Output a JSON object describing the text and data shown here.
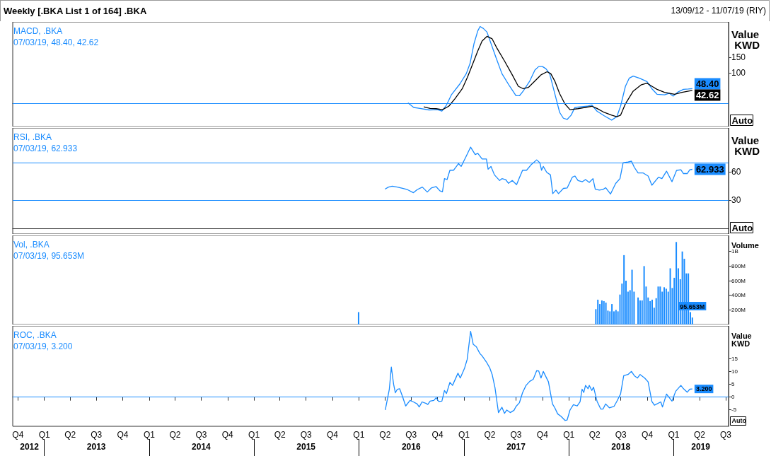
{
  "chart_data": [
    {
      "type": "line",
      "title": "MACD, .BKA",
      "subtitle": "07/03/19, 48.40, 42.62",
      "ylabel": "Value KWD",
      "xlim": [
        "2012-09-13",
        "2019-07-11"
      ],
      "ylim": [
        -75,
        265
      ],
      "yticks": [
        100,
        150
      ],
      "tick_labels": "y",
      "ref_lines": [
        {
          "axis": "y",
          "value": 0,
          "color": "#1a8cff"
        }
      ],
      "annotations": [
        "Weekly [.BKA List 1 of 164] .BKA",
        "13/09/12 - 11/07/19 (RIY)",
        "Auto"
      ],
      "series": [
        {
          "color": "#1a8cff",
          "x": [
            "2016-06-20",
            "2016-07-10",
            "2016-08-01",
            "2016-09-01",
            "2016-10-01",
            "2016-10-16",
            "2016-11-01",
            "2016-11-18",
            "2016-12-18",
            "2017-01-09",
            "2017-01-22",
            "2017-02-05",
            "2017-02-18",
            "2017-02-26",
            "2017-03-09",
            "2017-03-22",
            "2017-04-05",
            "2017-04-22",
            "2017-05-13",
            "2017-06-09",
            "2017-07-01",
            "2017-07-13",
            "2017-07-26",
            "2017-08-18",
            "2017-09-05",
            "2017-09-18",
            "2017-10-01",
            "2017-10-13",
            "2017-10-26",
            "2017-11-13",
            "2017-11-30",
            "2017-12-13",
            "2017-12-26",
            "2018-01-09",
            "2018-01-22",
            "2018-02-09",
            "2018-03-05",
            "2018-03-22",
            "2018-04-09",
            "2018-05-04",
            "2018-05-30",
            "2018-06-17",
            "2018-06-30",
            "2018-07-17",
            "2018-07-30",
            "2018-08-13",
            "2018-09-04",
            "2018-09-30",
            "2018-10-17",
            "2018-11-04",
            "2018-11-30",
            "2018-12-17",
            "2018-12-30",
            "2019-01-17",
            "2019-02-04",
            "2019-02-21",
            "2019-03-07"
          ],
          "values": [
            2,
            -13,
            -16,
            -21,
            -20,
            -25,
            -5,
            28,
            64,
            97,
            130,
            195,
            236,
            250,
            244,
            232,
            195,
            150,
            97,
            56,
            25,
            25,
            40,
            73,
            109,
            120,
            120,
            113,
            97,
            32,
            -29,
            -48,
            -52,
            -38,
            -13,
            -11,
            -9,
            -5,
            -25,
            -40,
            -54,
            -43,
            -9,
            56,
            82,
            89,
            82,
            71,
            48,
            30,
            28,
            33,
            24,
            38,
            46,
            47,
            48.4
          ],
          "value_labels": [
            null,
            null,
            null,
            null,
            null,
            null,
            null,
            null,
            null,
            null,
            null,
            null,
            null,
            null,
            null,
            null,
            null,
            null,
            null,
            null,
            null,
            null,
            null,
            null,
            null,
            null,
            null,
            null,
            null,
            null,
            null,
            null,
            null,
            null,
            null,
            null,
            null,
            null,
            null,
            null,
            null,
            null,
            null,
            null,
            null,
            null,
            null,
            null,
            null,
            null,
            null,
            null,
            null,
            null,
            null,
            null,
            "48.40"
          ]
        },
        {
          "color": "#000000",
          "x": [
            "2016-08-14",
            "2016-09-05",
            "2016-09-26",
            "2016-10-18",
            "2016-11-09",
            "2016-12-01",
            "2016-12-26",
            "2017-01-13",
            "2017-02-01",
            "2017-02-18",
            "2017-03-05",
            "2017-03-22",
            "2017-04-09",
            "2017-04-26",
            "2017-05-22",
            "2017-06-18",
            "2017-07-09",
            "2017-07-26",
            "2017-08-13",
            "2017-09-05",
            "2017-09-26",
            "2017-10-17",
            "2017-10-30",
            "2017-11-13",
            "2017-11-30",
            "2017-12-18",
            "2018-01-05",
            "2018-02-01",
            "2018-02-26",
            "2018-03-22",
            "2018-04-09",
            "2018-05-04",
            "2018-05-30",
            "2018-06-17",
            "2018-06-30",
            "2018-07-17",
            "2018-08-13",
            "2018-09-09",
            "2018-09-30",
            "2018-10-17",
            "2018-11-04",
            "2018-11-30",
            "2019-01-04",
            "2019-01-30",
            "2019-03-07"
          ],
          "values": [
            -11,
            -16,
            -17,
            -20,
            -9,
            16,
            48,
            85,
            130,
            171,
            203,
            218,
            210,
            179,
            138,
            93,
            56,
            48,
            52,
            73,
            93,
            103,
            97,
            73,
            32,
            -1,
            -20,
            -17,
            -13,
            -9,
            -16,
            -29,
            -38,
            -43,
            -38,
            -1,
            40,
            60,
            66,
            56,
            46,
            36,
            30,
            36,
            42.62
          ],
          "value_labels": [
            null,
            null,
            null,
            null,
            null,
            null,
            null,
            null,
            null,
            null,
            null,
            null,
            null,
            null,
            null,
            null,
            null,
            null,
            null,
            null,
            null,
            null,
            null,
            null,
            null,
            null,
            null,
            null,
            null,
            null,
            null,
            null,
            null,
            null,
            null,
            null,
            null,
            null,
            null,
            null,
            null,
            null,
            null,
            null,
            "42.62"
          ]
        }
      ]
    },
    {
      "type": "line",
      "title": "RSI, .BKA",
      "subtitle": "07/03/19, 62.933",
      "ylabel": "Value KWD",
      "xlim": [
        "2012-09-13",
        "2019-07-11"
      ],
      "ylim": [
        -6,
        107
      ],
      "yticks": [
        30,
        60
      ],
      "tick_labels": "y",
      "ref_lines": [
        {
          "axis": "y",
          "value": 70,
          "color": "#1a8cff"
        },
        {
          "axis": "y",
          "value": 30,
          "color": "#1a8cff"
        }
      ],
      "annotations": [
        "Auto"
      ],
      "series": [
        {
          "color": "#1a8cff",
          "x": [
            "2016-04-01",
            "2016-04-13",
            "2016-04-26",
            "2016-05-14",
            "2016-06-01",
            "2016-06-18",
            "2016-07-09",
            "2016-07-22",
            "2016-08-09",
            "2016-08-26",
            "2016-09-09",
            "2016-09-26",
            "2016-10-09",
            "2016-10-18",
            "2016-10-25",
            "2016-11-03",
            "2016-11-13",
            "2016-11-26",
            "2016-12-13",
            "2016-12-22",
            "2017-01-09",
            "2017-01-24",
            "2017-02-09",
            "2017-02-18",
            "2017-03-05",
            "2017-03-20",
            "2017-03-26",
            "2017-04-05",
            "2017-04-17",
            "2017-05-05",
            "2017-05-13",
            "2017-05-26",
            "2017-06-05",
            "2017-06-18",
            "2017-07-03",
            "2017-07-13",
            "2017-07-24",
            "2017-08-07",
            "2017-08-22",
            "2017-09-11",
            "2017-09-22",
            "2017-09-28",
            "2017-10-04",
            "2017-10-16",
            "2017-10-29",
            "2017-11-06",
            "2017-11-17",
            "2017-11-26",
            "2017-12-13",
            "2017-12-26",
            "2018-01-13",
            "2018-01-22",
            "2018-02-02",
            "2018-02-17",
            "2018-02-28",
            "2018-03-13",
            "2018-03-26",
            "2018-04-03",
            "2018-04-17",
            "2018-04-29",
            "2018-05-09",
            "2018-05-26",
            "2018-06-13",
            "2018-06-28",
            "2018-07-09",
            "2018-07-26",
            "2018-08-07",
            "2018-08-17",
            "2018-08-30",
            "2018-09-17",
            "2018-10-04",
            "2018-10-17",
            "2018-11-09",
            "2018-11-21",
            "2018-12-07",
            "2018-12-26",
            "2019-01-11",
            "2019-01-26",
            "2019-02-04",
            "2019-02-17",
            "2019-02-26",
            "2019-03-07"
          ],
          "values": [
            41.8,
            44,
            45,
            44,
            42.6,
            41.3,
            38,
            41.3,
            44,
            38.7,
            43,
            44.5,
            40,
            39,
            53,
            52,
            62,
            62,
            69,
            66,
            77,
            86.6,
            78.7,
            80,
            74,
            74,
            63,
            66,
            57,
            51,
            53,
            52,
            48,
            51,
            46.6,
            54,
            62,
            62,
            67.6,
            73,
            70,
            62,
            66,
            59.7,
            57,
            37,
            40.8,
            37,
            42.6,
            43,
            54.5,
            55.8,
            51,
            49.7,
            52,
            49,
            53,
            41.8,
            40.8,
            41.3,
            43.4,
            36.6,
            47.9,
            53,
            70,
            70.8,
            71.6,
            65,
            59,
            59,
            55.8,
            46,
            54.5,
            53,
            61,
            49.7,
            61.8,
            62.4,
            58.4,
            58.4,
            62.4,
            62.933
          ],
          "value_labels": [
            null,
            null,
            null,
            null,
            null,
            null,
            null,
            null,
            null,
            null,
            null,
            null,
            null,
            null,
            null,
            null,
            null,
            null,
            null,
            null,
            null,
            null,
            null,
            null,
            null,
            null,
            null,
            null,
            null,
            null,
            null,
            null,
            null,
            null,
            null,
            null,
            null,
            null,
            null,
            null,
            null,
            null,
            null,
            null,
            null,
            null,
            null,
            null,
            null,
            null,
            null,
            null,
            null,
            null,
            null,
            null,
            null,
            null,
            null,
            null,
            null,
            null,
            null,
            null,
            null,
            null,
            null,
            null,
            null,
            null,
            null,
            null,
            null,
            null,
            null,
            null,
            null,
            null,
            null,
            null,
            null,
            "62.933"
          ]
        }
      ]
    },
    {
      "type": "bar",
      "title": "Vol, .BKA",
      "subtitle": "07/03/19, 95.653M",
      "ylabel": "Volume",
      "xlim": [
        "2012-09-13",
        "2019-07-11"
      ],
      "ylim": [
        0,
        1220000000
      ],
      "yticks": [
        {
          "value": 200000000,
          "label": "200M"
        },
        {
          "value": 400000000,
          "label": "400M"
        },
        {
          "value": 600000000,
          "label": "600M"
        },
        {
          "value": 800000000,
          "label": "800M"
        },
        {
          "value": 1000000000,
          "label": "1B"
        }
      ],
      "tick_labels": "y",
      "series": [
        {
          "color": "#1a8cff",
          "x": [
            "2015-12-31",
            "2018-04-05",
            "2018-04-12",
            "2018-04-19",
            "2018-04-26",
            "2018-05-03",
            "2018-05-10",
            "2018-05-17",
            "2018-05-24",
            "2018-05-31",
            "2018-06-07",
            "2018-06-14",
            "2018-06-21",
            "2018-06-28",
            "2018-07-05",
            "2018-07-12",
            "2018-07-19",
            "2018-07-26",
            "2018-08-02",
            "2018-08-09",
            "2018-08-16",
            "2018-08-30",
            "2018-09-06",
            "2018-09-13",
            "2018-09-20",
            "2018-09-27",
            "2018-10-04",
            "2018-10-11",
            "2018-10-18",
            "2018-10-25",
            "2018-11-01",
            "2018-11-08",
            "2018-11-15",
            "2018-11-22",
            "2018-11-29",
            "2018-12-06",
            "2018-12-13",
            "2018-12-20",
            "2018-12-27",
            "2019-01-03",
            "2019-01-10",
            "2019-01-17",
            "2019-01-24",
            "2019-01-31",
            "2019-02-07",
            "2019-02-14",
            "2019-02-21",
            "2019-02-28",
            "2019-03-07"
          ],
          "values": [
            170000000,
            210000000,
            340000000,
            280000000,
            330000000,
            320000000,
            300000000,
            190000000,
            180000000,
            280000000,
            180000000,
            200000000,
            180000000,
            410000000,
            560000000,
            950000000,
            600000000,
            450000000,
            470000000,
            750000000,
            450000000,
            370000000,
            330000000,
            330000000,
            800000000,
            520000000,
            370000000,
            320000000,
            340000000,
            230000000,
            360000000,
            520000000,
            520000000,
            450000000,
            510000000,
            490000000,
            450000000,
            770000000,
            500000000,
            640000000,
            1130000000,
            770000000,
            620000000,
            1000000000,
            900000000,
            700000000,
            700000000,
            170000000,
            95653000
          ],
          "value_labels": [
            null,
            null,
            null,
            null,
            null,
            null,
            null,
            null,
            null,
            null,
            null,
            null,
            null,
            null,
            null,
            null,
            null,
            null,
            null,
            null,
            null,
            null,
            null,
            null,
            null,
            null,
            null,
            null,
            null,
            null,
            null,
            null,
            null,
            null,
            null,
            null,
            null,
            null,
            null,
            null,
            null,
            null,
            null,
            null,
            null,
            null,
            null,
            null,
            "95.653M"
          ]
        }
      ]
    },
    {
      "type": "line",
      "title": "ROC, .BKA",
      "subtitle": "07/03/19, 3.200",
      "ylabel": "Value KWD",
      "xlim": [
        "2012-09-13",
        "2019-07-11"
      ],
      "ylim": [
        -11.5,
        28
      ],
      "yticks": [
        -5,
        0,
        5,
        10,
        15
      ],
      "xticks": [
        {
          "value": "2012-10-01",
          "label": "Q4"
        },
        {
          "value": "2013-01-01",
          "label": "Q1"
        },
        {
          "value": "2013-04-01",
          "label": "Q2"
        },
        {
          "value": "2013-07-01",
          "label": "Q3"
        },
        {
          "value": "2013-10-01",
          "label": "Q4"
        },
        {
          "value": "2014-01-01",
          "label": "Q1"
        },
        {
          "value": "2014-04-01",
          "label": "Q2"
        },
        {
          "value": "2014-07-01",
          "label": "Q3"
        },
        {
          "value": "2014-10-01",
          "label": "Q4"
        },
        {
          "value": "2015-01-01",
          "label": "Q1"
        },
        {
          "value": "2015-04-01",
          "label": "Q2"
        },
        {
          "value": "2015-07-01",
          "label": "Q3"
        },
        {
          "value": "2015-10-01",
          "label": "Q4"
        },
        {
          "value": "2016-01-01",
          "label": "Q1"
        },
        {
          "value": "2016-04-01",
          "label": "Q2"
        },
        {
          "value": "2016-07-01",
          "label": "Q3"
        },
        {
          "value": "2016-10-01",
          "label": "Q4"
        },
        {
          "value": "2017-01-01",
          "label": "Q1"
        },
        {
          "value": "2017-04-01",
          "label": "Q2"
        },
        {
          "value": "2017-07-01",
          "label": "Q3"
        },
        {
          "value": "2017-10-01",
          "label": "Q4"
        },
        {
          "value": "2018-01-01",
          "label": "Q1"
        },
        {
          "value": "2018-04-01",
          "label": "Q2"
        },
        {
          "value": "2018-07-01",
          "label": "Q3"
        },
        {
          "value": "2018-10-01",
          "label": "Q4"
        },
        {
          "value": "2019-01-01",
          "label": "Q1"
        },
        {
          "value": "2019-04-01",
          "label": "Q2"
        },
        {
          "value": "2019-07-01",
          "label": "Q3"
        }
      ],
      "x2lim": [
        "2012-09-13",
        "2019-07-11"
      ],
      "x2ticks": [
        {
          "value": "2012-11-10",
          "label": "2012"
        },
        {
          "value": "2013-01-01",
          "label": null
        },
        {
          "value": "2013-07-01",
          "label": "2013"
        },
        {
          "value": "2014-01-01",
          "label": null
        },
        {
          "value": "2014-07-01",
          "label": "2014"
        },
        {
          "value": "2015-01-01",
          "label": null
        },
        {
          "value": "2015-07-01",
          "label": "2015"
        },
        {
          "value": "2016-01-01",
          "label": null
        },
        {
          "value": "2016-07-01",
          "label": "2016"
        },
        {
          "value": "2017-01-01",
          "label": null
        },
        {
          "value": "2017-07-01",
          "label": "2017"
        },
        {
          "value": "2018-01-01",
          "label": null
        },
        {
          "value": "2018-07-01",
          "label": "2018"
        },
        {
          "value": "2019-01-01",
          "label": null
        },
        {
          "value": "2019-04-05",
          "label": "2019"
        }
      ],
      "ref_lines": [
        {
          "axis": "y",
          "value": 0,
          "color": "#1a8cff"
        }
      ],
      "annotations": [
        "Auto"
      ],
      "series": [
        {
          "color": "#1a8cff",
          "x": [
            "2016-04-02",
            "2016-04-16",
            "2016-04-23",
            "2016-05-01",
            "2016-05-07",
            "2016-05-14",
            "2016-05-22",
            "2016-06-01",
            "2016-06-12",
            "2016-06-27",
            "2016-07-09",
            "2016-07-22",
            "2016-07-29",
            "2016-08-08",
            "2016-08-22",
            "2016-08-28",
            "2016-09-05",
            "2016-09-18",
            "2016-09-26",
            "2016-10-05",
            "2016-10-16",
            "2016-10-25",
            "2016-11-01",
            "2016-11-13",
            "2016-11-22",
            "2016-12-11",
            "2016-12-19",
            "2017-01-03",
            "2017-01-12",
            "2017-01-24",
            "2017-02-02",
            "2017-02-13",
            "2017-02-25",
            "2017-03-05",
            "2017-03-20",
            "2017-04-01",
            "2017-04-09",
            "2017-04-19",
            "2017-05-01",
            "2017-05-13",
            "2017-05-22",
            "2017-05-30",
            "2017-06-11",
            "2017-06-24",
            "2017-07-01",
            "2017-07-13",
            "2017-07-24",
            "2017-08-05",
            "2017-08-18",
            "2017-08-30",
            "2017-09-11",
            "2017-09-18",
            "2017-09-26",
            "2017-10-04",
            "2017-10-22",
            "2017-11-05",
            "2017-11-13",
            "2017-11-23",
            "2017-12-05",
            "2017-12-11",
            "2017-12-19",
            "2017-12-26",
            "2018-01-05",
            "2018-01-17",
            "2018-01-30",
            "2018-02-09",
            "2018-02-16",
            "2018-02-22",
            "2018-02-28",
            "2018-03-09",
            "2018-03-13",
            "2018-03-22",
            "2018-03-28",
            "2018-04-09",
            "2018-04-22",
            "2018-04-30",
            "2018-05-09",
            "2018-05-22",
            "2018-06-07",
            "2018-06-16",
            "2018-06-30",
            "2018-07-11",
            "2018-07-26",
            "2018-08-07",
            "2018-08-17",
            "2018-08-28",
            "2018-09-06",
            "2018-09-22",
            "2018-10-04",
            "2018-10-17",
            "2018-10-26",
            "2018-11-17",
            "2018-11-23",
            "2018-12-07",
            "2018-12-26",
            "2019-01-08",
            "2019-01-26",
            "2019-02-04",
            "2019-02-17",
            "2019-02-26",
            "2019-03-07"
          ],
          "values": [
            -5.1,
            3.1,
            11.8,
            5,
            1.7,
            3.1,
            3.3,
            0.2,
            -3.5,
            -1.3,
            -1.9,
            -2.7,
            -3.9,
            -1.9,
            -2.5,
            -2.9,
            -1.6,
            -1.3,
            -0.3,
            -1.7,
            -1.6,
            2.6,
            1.4,
            5.8,
            4.6,
            9.4,
            7.5,
            11.4,
            14.8,
            25.9,
            20.8,
            19.8,
            17.2,
            16.2,
            13.8,
            11.4,
            8.9,
            3.6,
            -6.1,
            -4,
            -6.4,
            -5.1,
            -6.1,
            -5.2,
            -3.7,
            -2.2,
            1.8,
            4.6,
            6.2,
            7,
            10.4,
            10.3,
            7.5,
            10.1,
            6,
            -2.7,
            -4.2,
            -6.6,
            -7.6,
            -8.3,
            -9.2,
            -9,
            -5.1,
            -3,
            -3.5,
            -1.9,
            3.1,
            1.8,
            4.6,
            3.3,
            4.6,
            2.6,
            3.9,
            -1.6,
            -4.7,
            -4.7,
            -2.7,
            -4.2,
            -3.7,
            -1.9,
            1.2,
            8.4,
            8.9,
            10.1,
            8.4,
            7.5,
            8.9,
            7.5,
            6,
            -1.7,
            -3.2,
            -1.9,
            -3.9,
            1.2,
            -1.6,
            2.3,
            4.6,
            3.3,
            1.9,
            3.1,
            3.2
          ],
          "value_labels": [
            null,
            null,
            null,
            null,
            null,
            null,
            null,
            null,
            null,
            null,
            null,
            null,
            null,
            null,
            null,
            null,
            null,
            null,
            null,
            null,
            null,
            null,
            null,
            null,
            null,
            null,
            null,
            null,
            null,
            null,
            null,
            null,
            null,
            null,
            null,
            null,
            null,
            null,
            null,
            null,
            null,
            null,
            null,
            null,
            null,
            null,
            null,
            null,
            null,
            null,
            null,
            null,
            null,
            null,
            null,
            null,
            null,
            null,
            null,
            null,
            null,
            null,
            null,
            null,
            null,
            null,
            null,
            null,
            null,
            null,
            null,
            null,
            null,
            null,
            null,
            null,
            null,
            null,
            null,
            null,
            null,
            null,
            null,
            null,
            null,
            null,
            null,
            null,
            null,
            null,
            null,
            null,
            null,
            null,
            null,
            null,
            null,
            null,
            null,
            null,
            "3.200"
          ]
        }
      ]
    }
  ]
}
